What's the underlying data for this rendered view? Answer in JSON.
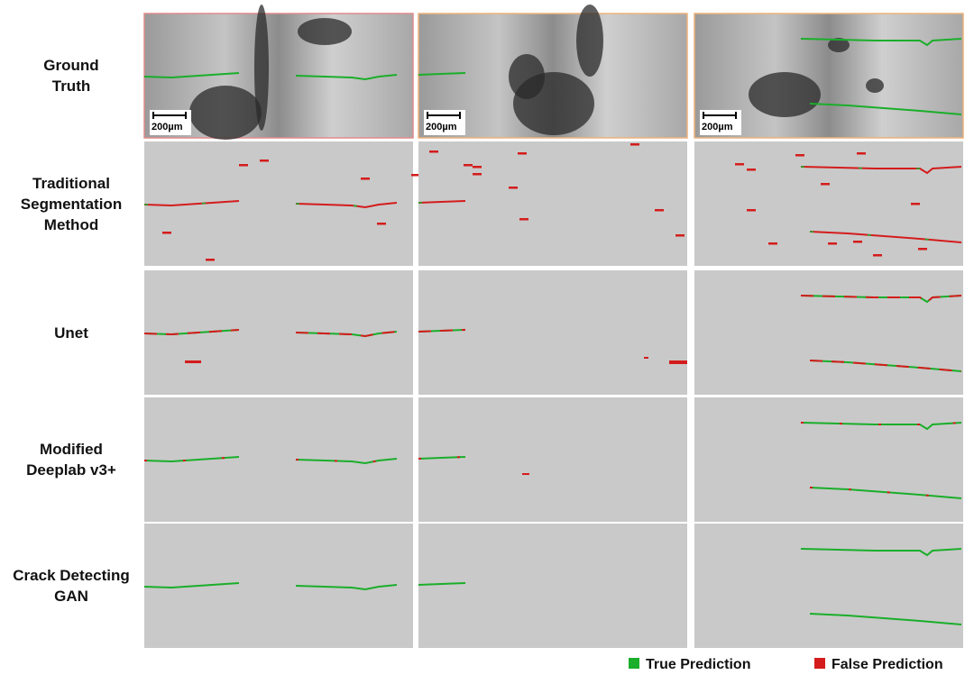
{
  "row_labels": [
    [
      "Ground",
      "Truth"
    ],
    [
      "Traditional",
      "Segmentation",
      "Method"
    ],
    [
      "Unet"
    ],
    [
      "Modified",
      "Deeplab v3+"
    ],
    [
      "Crack Detecting",
      "GAN"
    ]
  ],
  "scale_labels": [
    "200µm",
    "200µm",
    "200µm"
  ],
  "legend": [
    {
      "label": "True Prediction",
      "color": "#1aae2a"
    },
    {
      "label": "False Prediction",
      "color": "#d41c1c"
    }
  ]
}
